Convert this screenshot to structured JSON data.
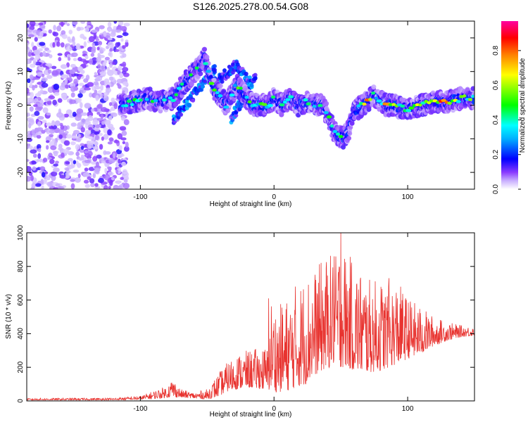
{
  "title": "S126.2025.278.00.54.G08",
  "colors": {
    "snr_line": "#e8332f",
    "frame": "#000000",
    "background": "#ffffff"
  },
  "chart_data": [
    {
      "type": "heatmap",
      "name": "spectrogram",
      "xlabel": "Height of straight line (km)",
      "ylabel": "Frequency (Hz)",
      "xlim": [
        -185,
        150
      ],
      "ylim": [
        -25,
        25
      ],
      "xticks": [
        -100,
        0,
        100
      ],
      "yticks": [
        -20,
        -10,
        0,
        10,
        20
      ],
      "grid": false,
      "colorbar": {
        "label": "Normalized spectral amplitude",
        "range": [
          0.0,
          0.97
        ],
        "ticks": [
          "0.0",
          "0.2",
          "0.4",
          "0.6",
          "0.8"
        ],
        "tick_values": [
          0.0,
          0.2,
          0.4,
          0.6,
          0.8
        ],
        "colormap": [
          "#ffffff",
          "#b48cf0",
          "#6a00ff",
          "#0000ff",
          "#00ffff",
          "#00ff00",
          "#ffff00",
          "#ff8000",
          "#ff0000",
          "#ff00a0"
        ]
      },
      "ridge": {
        "x": [
          -115,
          -105,
          -95,
          -85,
          -75,
          -68,
          -62,
          -56,
          -52,
          -48,
          -44,
          -40,
          -36,
          -32,
          -28,
          -22,
          -16,
          -12,
          -8,
          -4,
          0,
          6,
          12,
          18,
          24,
          30,
          36,
          40,
          44,
          48,
          52,
          56,
          60,
          66,
          70,
          74,
          78,
          84,
          90,
          96,
          102,
          110,
          120,
          130,
          140,
          150
        ],
        "y": [
          0,
          1,
          2,
          1,
          2,
          6,
          9,
          11,
          14,
          8,
          4,
          3,
          0,
          3,
          6,
          3,
          0,
          0,
          0,
          0,
          2,
          0,
          2,
          0,
          1,
          0,
          0,
          -3,
          -7,
          -9,
          -10,
          -7,
          -2,
          0,
          1,
          3,
          2,
          0,
          0,
          -1,
          -1,
          0,
          1,
          1,
          2,
          2
        ],
        "values": [
          0.35,
          0.45,
          0.4,
          0.45,
          0.4,
          0.45,
          0.5,
          0.45,
          0.4,
          0.5,
          0.5,
          0.4,
          0.4,
          0.45,
          0.5,
          0.45,
          0.45,
          0.4,
          0.55,
          0.45,
          0.4,
          0.5,
          0.45,
          0.4,
          0.5,
          0.4,
          0.45,
          0.4,
          0.5,
          0.45,
          0.45,
          0.4,
          0.35,
          0.55,
          0.7,
          0.5,
          0.6,
          0.7,
          0.6,
          0.55,
          0.6,
          0.7,
          0.8,
          0.85,
          0.6,
          0.5
        ]
      },
      "side_ridges": [
        {
          "x": [
            -75,
            -66,
            -58,
            -50,
            -44
          ],
          "y": [
            -4,
            0,
            4,
            8,
            11
          ]
        },
        {
          "x": [
            -46,
            -40,
            -34,
            -28,
            -22,
            -18
          ],
          "y": [
            6,
            8,
            10,
            12,
            9,
            7
          ]
        },
        {
          "x": [
            -32,
            -26,
            -20,
            -14
          ],
          "y": [
            -4,
            0,
            4,
            9
          ]
        }
      ]
    },
    {
      "type": "line",
      "name": "snr",
      "xlabel": "Height of straight line (km)",
      "ylabel": "SNR (10 * v/v)",
      "xlim": [
        -185,
        150
      ],
      "ylim": [
        0,
        1000
      ],
      "xticks": [
        -100,
        0,
        100
      ],
      "yticks": [
        0,
        200,
        400,
        600,
        800,
        1000
      ],
      "grid": false,
      "envelope": {
        "x": [
          -185,
          -120,
          -100,
          -90,
          -80,
          -76,
          -70,
          -60,
          -50,
          -42,
          -34,
          -28,
          -20,
          -10,
          -4,
          -2,
          2,
          10,
          16,
          24,
          30,
          36,
          42,
          46,
          50,
          54,
          60,
          66,
          72,
          80,
          86,
          92,
          100,
          110,
          120,
          130,
          140,
          150
        ],
        "min": [
          5,
          5,
          8,
          12,
          20,
          25,
          20,
          15,
          10,
          25,
          60,
          70,
          80,
          70,
          60,
          80,
          50,
          60,
          80,
          100,
          150,
          180,
          200,
          220,
          200,
          200,
          180,
          170,
          170,
          180,
          200,
          220,
          250,
          280,
          330,
          360,
          380,
          390
        ],
        "max": [
          15,
          18,
          30,
          60,
          90,
          140,
          70,
          50,
          70,
          160,
          240,
          280,
          300,
          320,
          330,
          610,
          560,
          620,
          680,
          760,
          780,
          840,
          880,
          860,
          1000,
          880,
          840,
          780,
          720,
          730,
          680,
          720,
          620,
          560,
          500,
          470,
          450,
          440
        ]
      },
      "highlights": [
        {
          "x": 50,
          "y": 1000
        },
        {
          "x": 45,
          "y": 860
        },
        {
          "x": 16,
          "y": 680
        },
        {
          "x": -4,
          "y": 610
        },
        {
          "x": 86,
          "y": 730
        }
      ]
    }
  ]
}
